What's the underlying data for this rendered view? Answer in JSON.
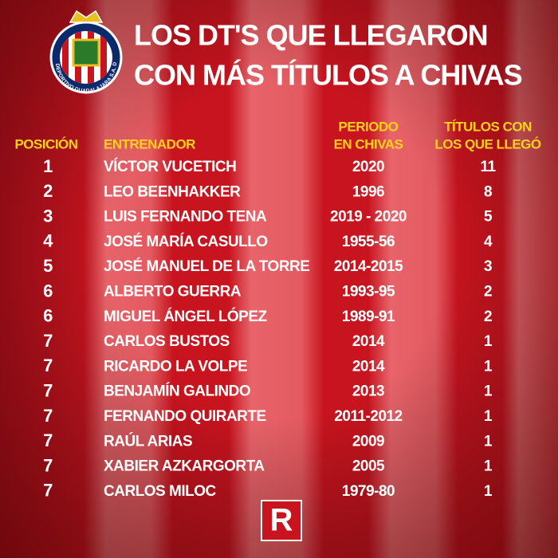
{
  "header": {
    "title_lines": [
      "LOS DT'S QUE LLEGARON",
      "CON MÁS TÍTULOS A CHIVAS"
    ],
    "logo_text": "CLUB DEPORTIVO GUADALAJARA S.A. DE C.V."
  },
  "table": {
    "columns": [
      [
        "POSICIÓN"
      ],
      [
        "ENTRENADOR"
      ],
      [
        "PERIODO",
        "EN CHIVAS"
      ],
      [
        "TÍTULOS CON",
        "LOS QUE LLEGÓ"
      ]
    ],
    "rows": [
      [
        "1",
        "VÍCTOR VUCETICH",
        "2020",
        "11"
      ],
      [
        "2",
        "LEO BEENHAKKER",
        "1996",
        "8"
      ],
      [
        "3",
        "LUIS FERNANDO TENA",
        "2019 - 2020",
        "5"
      ],
      [
        "4",
        "JOSÉ MARÍA CASULLO",
        "1955-56",
        "4"
      ],
      [
        "5",
        "JOSÉ MANUEL DE LA TORRE",
        "2014-2015",
        "3"
      ],
      [
        "6",
        "ALBERTO GUERRA",
        "1993-95",
        "2"
      ],
      [
        "6",
        "MIGUEL ÁNGEL LÓPEZ",
        "1989-91",
        "2"
      ],
      [
        "7",
        "CARLOS BUSTOS",
        "2014",
        "1"
      ],
      [
        "7",
        "RICARDO LA VOLPE",
        "2014",
        "1"
      ],
      [
        "7",
        "BENJAMÍN GALINDO",
        "2013",
        "1"
      ],
      [
        "7",
        "FERNANDO QUIRARTE",
        "2011-2012",
        "1"
      ],
      [
        "7",
        "RAÚL ARIAS",
        "2009",
        "1"
      ],
      [
        "7",
        "XABIER AZKARGORTA",
        "2005",
        "1"
      ],
      [
        "7",
        "CARLOS MILOC",
        "1979-80",
        "1"
      ]
    ]
  },
  "footer": {
    "brand": "R"
  }
}
